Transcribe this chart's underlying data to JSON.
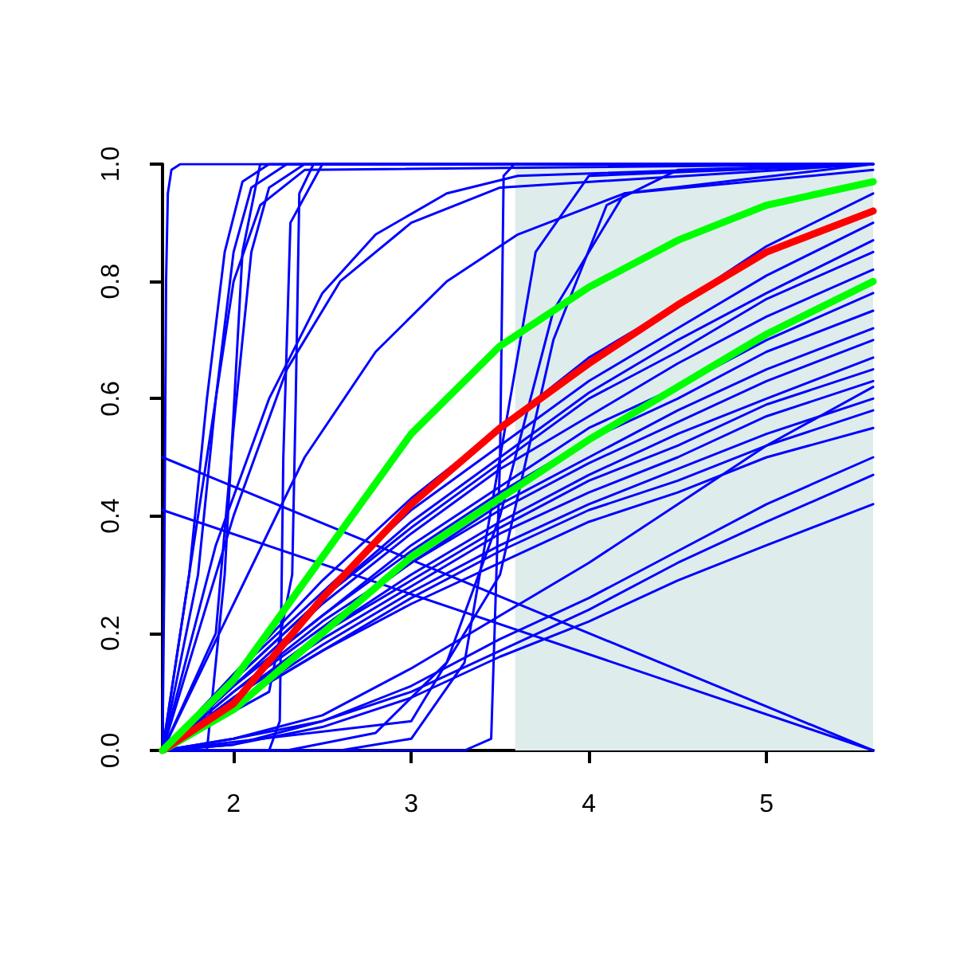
{
  "chart_data": {
    "type": "line",
    "xlim": [
      1.6,
      5.6
    ],
    "ylim": [
      0,
      1
    ],
    "xticks": [
      2,
      3,
      4,
      5
    ],
    "yticks": [
      {
        "value": 0,
        "label": "0.0"
      },
      {
        "value": 0.2,
        "label": "0.2"
      },
      {
        "value": 0.4,
        "label": "0.4"
      },
      {
        "value": 0.6,
        "label": "0.6"
      },
      {
        "value": 0.8,
        "label": "0.8"
      },
      {
        "value": 1,
        "label": "1.0"
      }
    ],
    "grid": false,
    "marker": "none",
    "line_style": "solid",
    "bands": [
      {
        "axis": "x",
        "from": 3.585,
        "to": 5.6,
        "color": "#dfecec"
      }
    ],
    "x": [
      1.6,
      2,
      2.5,
      3,
      3.5,
      4,
      4.5,
      5,
      5.6
    ],
    "series": [
      {
        "color": "#0000ff",
        "x": [
          1.6,
          1.61,
          1.62,
          1.63,
          1.65,
          1.7,
          5.6
        ],
        "values": [
          0,
          0.3,
          0.8,
          0.95,
          0.99,
          1,
          1
        ]
      },
      {
        "color": "#0000ff",
        "x": [
          1.6,
          1.75,
          1.85,
          1.95,
          2.05,
          2.2,
          5.6
        ],
        "values": [
          0,
          0.3,
          0.6,
          0.85,
          0.97,
          1,
          1
        ]
      },
      {
        "color": "#0000ff",
        "x": [
          1.6,
          1.8,
          1.9,
          2.0,
          2.1,
          2.3,
          5.6
        ],
        "values": [
          0,
          0.3,
          0.6,
          0.85,
          0.96,
          1,
          1
        ]
      },
      {
        "color": "#0000ff",
        "x": [
          1.6,
          1.7,
          1.85,
          2.0,
          2.15,
          2.4,
          5.6
        ],
        "values": [
          0,
          0.2,
          0.5,
          0.8,
          0.93,
          0.99,
          1
        ]
      },
      {
        "color": "#0000ff",
        "x": [
          1.6,
          1.9,
          2.0,
          2.1,
          2.2,
          2.4,
          5.6
        ],
        "values": [
          0,
          0.2,
          0.55,
          0.85,
          0.96,
          1,
          1
        ]
      },
      {
        "color": "#0000ff",
        "x": [
          1.6,
          1.85,
          1.95,
          2.05,
          2.15,
          5.6
        ],
        "values": [
          0,
          0,
          0.3,
          0.85,
          1,
          1
        ]
      },
      {
        "color": "#0000ff",
        "x": [
          1.6,
          1.9,
          2.2,
          2.5,
          2.8,
          3.2,
          3.6,
          5.6
        ],
        "values": [
          0,
          0.35,
          0.6,
          0.78,
          0.88,
          0.95,
          0.98,
          1
        ]
      },
      {
        "color": "#0000ff",
        "x": [
          1.6,
          2.0,
          2.4,
          2.8,
          3.2,
          3.6,
          4.2,
          5.6
        ],
        "values": [
          0,
          0.25,
          0.5,
          0.68,
          0.8,
          0.88,
          0.95,
          0.99
        ]
      },
      {
        "color": "#0000ff",
        "x": [
          1.6,
          2.0,
          2.3,
          2.6,
          3.0,
          3.5,
          5.6
        ],
        "values": [
          0,
          0.4,
          0.65,
          0.8,
          0.9,
          0.96,
          1
        ]
      },
      {
        "color": "#0000ff",
        "x": [
          1.6,
          2.2,
          2.33,
          2.35,
          2.37,
          2.45,
          5.6
        ],
        "values": [
          0,
          0.1,
          0.3,
          0.6,
          0.95,
          1,
          1
        ]
      },
      {
        "color": "#0000ff",
        "x": [
          1.6,
          2.2,
          2.26,
          2.28,
          2.32,
          2.5,
          5.6
        ],
        "values": [
          0,
          0,
          0.05,
          0.5,
          0.9,
          1,
          1
        ]
      },
      {
        "color": "#0000ff",
        "x": [
          1.6,
          3.3,
          3.45,
          3.5,
          3.52,
          3.58,
          5.6
        ],
        "values": [
          0,
          0,
          0.02,
          0.5,
          0.98,
          1,
          1
        ]
      },
      {
        "color": "#0000ff",
        "x": [
          1.6,
          2.6,
          3.0,
          3.3,
          3.5,
          3.7,
          4.0,
          5.6
        ],
        "values": [
          0,
          0,
          0.02,
          0.15,
          0.5,
          0.85,
          0.98,
          1
        ]
      },
      {
        "color": "#0000ff",
        "x": [
          1.6,
          2.3,
          2.8,
          3.2,
          3.5,
          3.8,
          4.2,
          5.6
        ],
        "values": [
          0,
          0,
          0.03,
          0.15,
          0.4,
          0.75,
          0.95,
          1
        ]
      },
      {
        "color": "#0000ff",
        "x": [
          1.6,
          3.0,
          3.5,
          3.8,
          4.1,
          4.5,
          5.6
        ],
        "values": [
          0,
          0.05,
          0.3,
          0.7,
          0.93,
          0.99,
          1
        ]
      },
      {
        "color": "#0000ff",
        "x": [
          1.6,
          5.6
        ],
        "values": [
          0.5,
          0
        ]
      },
      {
        "color": "#0000ff",
        "x": [
          1.6,
          5.6
        ],
        "values": [
          0.41,
          0
        ]
      },
      {
        "color": "#0000ff",
        "values": [
          0,
          0.13,
          0.29,
          0.43,
          0.55,
          0.67,
          0.76,
          0.86,
          0.95
        ]
      },
      {
        "color": "#0000ff",
        "values": [
          0,
          0.13,
          0.27,
          0.41,
          0.52,
          0.63,
          0.72,
          0.81,
          0.9
        ]
      },
      {
        "color": "#0000ff",
        "values": [
          0,
          0.12,
          0.26,
          0.39,
          0.5,
          0.61,
          0.7,
          0.78,
          0.87
        ]
      },
      {
        "color": "#0000ff",
        "values": [
          0,
          0.12,
          0.26,
          0.38,
          0.49,
          0.6,
          0.68,
          0.77,
          0.85
        ]
      },
      {
        "color": "#0000ff",
        "values": [
          0,
          0.11,
          0.25,
          0.37,
          0.48,
          0.57,
          0.66,
          0.74,
          0.82
        ]
      },
      {
        "color": "#0000ff",
        "values": [
          0,
          0.11,
          0.23,
          0.35,
          0.45,
          0.55,
          0.62,
          0.7,
          0.78
        ]
      },
      {
        "color": "#0000ff",
        "values": [
          0,
          0.11,
          0.23,
          0.34,
          0.44,
          0.53,
          0.6,
          0.68,
          0.75
        ]
      },
      {
        "color": "#0000ff",
        "values": [
          0,
          0.1,
          0.22,
          0.32,
          0.42,
          0.5,
          0.58,
          0.65,
          0.72
        ]
      },
      {
        "color": "#0000ff",
        "values": [
          0,
          0.1,
          0.21,
          0.32,
          0.41,
          0.49,
          0.56,
          0.63,
          0.7
        ]
      },
      {
        "color": "#0000ff",
        "values": [
          0,
          0.09,
          0.2,
          0.3,
          0.39,
          0.47,
          0.54,
          0.6,
          0.67
        ]
      },
      {
        "color": "#0000ff",
        "values": [
          0,
          0.09,
          0.2,
          0.29,
          0.38,
          0.46,
          0.52,
          0.59,
          0.65
        ]
      },
      {
        "color": "#0000ff",
        "values": [
          0,
          0.09,
          0.19,
          0.28,
          0.37,
          0.44,
          0.5,
          0.57,
          0.63
        ]
      },
      {
        "color": "#0000ff",
        "values": [
          0,
          0.08,
          0.18,
          0.27,
          0.35,
          0.42,
          0.48,
          0.54,
          0.6
        ]
      },
      {
        "color": "#0000ff",
        "values": [
          0,
          0.08,
          0.17,
          0.26,
          0.34,
          0.41,
          0.46,
          0.52,
          0.58
        ]
      },
      {
        "color": "#0000ff",
        "values": [
          0,
          0.08,
          0.17,
          0.25,
          0.32,
          0.39,
          0.44,
          0.5,
          0.55
        ]
      },
      {
        "color": "#0000ff",
        "values": [
          0,
          0.02,
          0.06,
          0.14,
          0.23,
          0.32,
          0.42,
          0.52,
          0.62
        ]
      },
      {
        "color": "#0000ff",
        "values": [
          0,
          0.02,
          0.05,
          0.11,
          0.19,
          0.26,
          0.34,
          0.42,
          0.5
        ]
      },
      {
        "color": "#0000ff",
        "values": [
          0,
          0.01,
          0.05,
          0.1,
          0.17,
          0.24,
          0.32,
          0.39,
          0.47
        ]
      },
      {
        "color": "#0000ff",
        "values": [
          0,
          0.01,
          0.04,
          0.09,
          0.16,
          0.22,
          0.29,
          0.35,
          0.42
        ]
      },
      {
        "color": "#00ff00",
        "values": [
          0,
          0.07,
          0.2,
          0.33,
          0.43,
          0.53,
          0.62,
          0.71,
          0.8
        ]
      },
      {
        "color": "#ff0000",
        "values": [
          0,
          0.08,
          0.26,
          0.42,
          0.55,
          0.66,
          0.76,
          0.85,
          0.92
        ]
      },
      {
        "color": "#00ff00",
        "values": [
          0,
          0.12,
          0.33,
          0.54,
          0.69,
          0.79,
          0.87,
          0.93,
          0.97
        ]
      }
    ]
  }
}
